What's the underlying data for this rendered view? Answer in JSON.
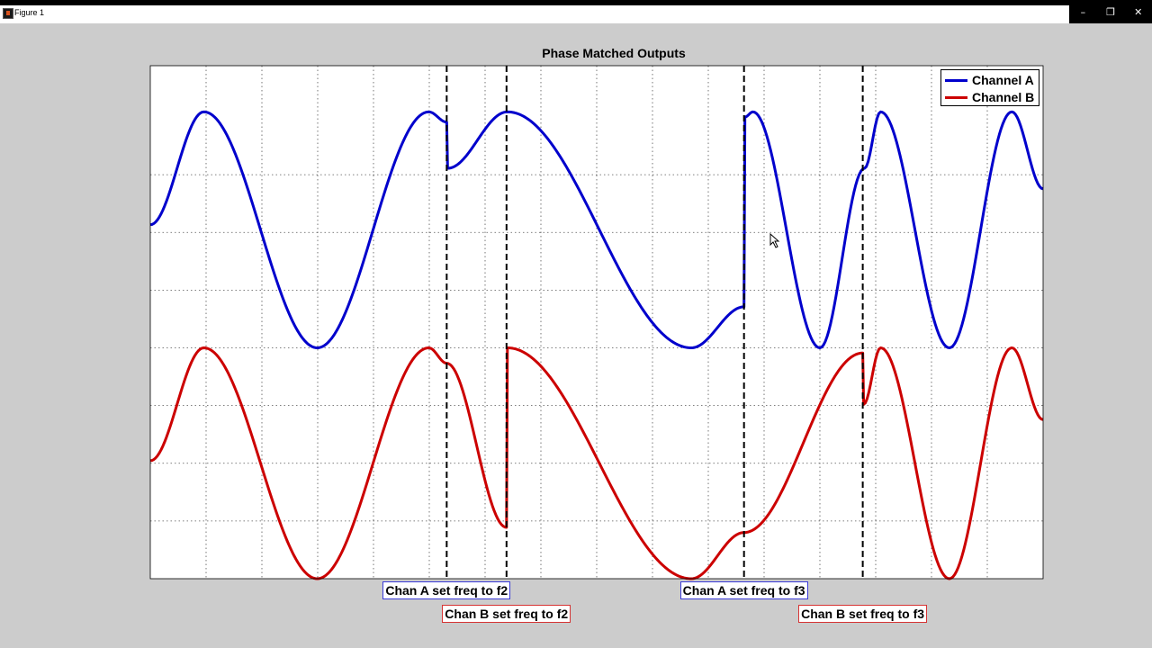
{
  "window": {
    "title": "Figure 1",
    "controls": {
      "minimize": "–",
      "restore": "❐",
      "close": "✕"
    }
  },
  "colors": {
    "channel_a": "#0000cc",
    "channel_b": "#cc0000",
    "background": "#cccccc",
    "axes_bg": "#ffffff"
  },
  "chart_data": {
    "type": "line",
    "title": "Phase Matched Outputs",
    "xlabel": "",
    "ylabel": "",
    "xlim": [
      0,
      1000
    ],
    "ylim": [
      0,
      1
    ],
    "grid": true,
    "legend_position": "top-right",
    "series": [
      {
        "name": "Channel A",
        "color": "#0000cc",
        "points": [
          {
            "x": 0,
            "y": 0.69
          },
          {
            "x": 60,
            "y": 0.91
          },
          {
            "x": 187,
            "y": 0.45
          },
          {
            "x": 312,
            "y": 0.91
          },
          {
            "x": 332,
            "y": 0.89
          },
          {
            "x": 333,
            "y": 0.8
          },
          {
            "x": 400,
            "y": 0.91
          },
          {
            "x": 606,
            "y": 0.45
          },
          {
            "x": 665,
            "y": 0.53
          },
          {
            "x": 666,
            "y": 0.9
          },
          {
            "x": 675,
            "y": 0.91
          },
          {
            "x": 750,
            "y": 0.45
          },
          {
            "x": 800,
            "y": 0.8
          },
          {
            "x": 818,
            "y": 0.91
          },
          {
            "x": 895,
            "y": 0.45
          },
          {
            "x": 965,
            "y": 0.91
          },
          {
            "x": 1000,
            "y": 0.76
          }
        ]
      },
      {
        "name": "Channel B",
        "color": "#cc0000",
        "points": [
          {
            "x": 0,
            "y": 0.23
          },
          {
            "x": 60,
            "y": 0.45
          },
          {
            "x": 187,
            "y": 0.0
          },
          {
            "x": 312,
            "y": 0.45
          },
          {
            "x": 332,
            "y": 0.42
          },
          {
            "x": 399,
            "y": 0.1
          },
          {
            "x": 400,
            "y": 0.45
          },
          {
            "x": 606,
            "y": 0.0
          },
          {
            "x": 665,
            "y": 0.09
          },
          {
            "x": 798,
            "y": 0.44
          },
          {
            "x": 799,
            "y": 0.34
          },
          {
            "x": 818,
            "y": 0.45
          },
          {
            "x": 895,
            "y": 0.0
          },
          {
            "x": 965,
            "y": 0.45
          },
          {
            "x": 1000,
            "y": 0.31
          }
        ]
      }
    ],
    "markers": [
      {
        "x": 332,
        "label": "Chan A set freq to f2",
        "channel": "a",
        "row": 0
      },
      {
        "x": 399,
        "label": "Chan B set freq to f2",
        "channel": "b",
        "row": 1
      },
      {
        "x": 665,
        "label": "Chan A set freq to f3",
        "channel": "a",
        "row": 0
      },
      {
        "x": 798,
        "label": "Chan B set freq to f3",
        "channel": "b",
        "row": 1
      }
    ]
  }
}
